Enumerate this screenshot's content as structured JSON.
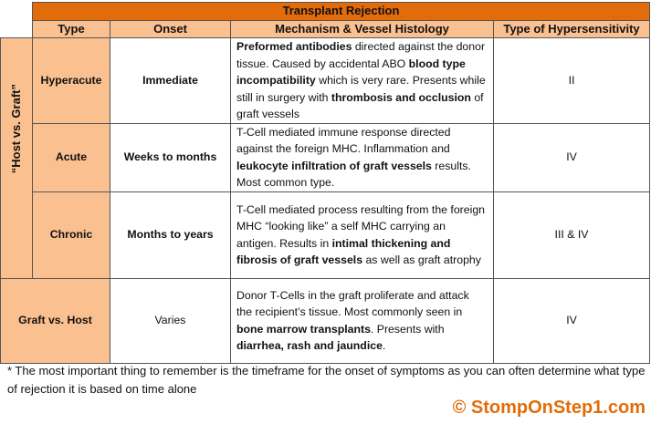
{
  "title": "Transplant Rejection",
  "headers": [
    "Type",
    "Onset",
    "Mechanism & Vessel Histology",
    "Type of Hypersensitivity"
  ],
  "side_label": "“Host vs. Graft”",
  "rows": [
    {
      "type": "Hyperacute",
      "onset": "Immediate",
      "hypersensitivity": "II",
      "mechanism": [
        {
          "t": "Preformed antibodies",
          "b": true
        },
        {
          "t": " directed against the donor tissue. Caused by accidental ABO ",
          "b": false
        },
        {
          "t": "blood type incompatibility",
          "b": true
        },
        {
          "t": " which is very rare. Presents while still in surgery with ",
          "b": false
        },
        {
          "t": "thrombosis and occlusion",
          "b": true
        },
        {
          "t": " of graft vessels",
          "b": false
        }
      ]
    },
    {
      "type": "Acute",
      "onset": "Weeks to months",
      "hypersensitivity": "IV",
      "mechanism": [
        {
          "t": "T-Cell mediated immune response directed against the foreign MHC. Inflammation and ",
          "b": false
        },
        {
          "t": "leukocyte infiltration of graft vessels",
          "b": true
        },
        {
          "t": " results. Most common type.",
          "b": false
        }
      ]
    },
    {
      "type": "Chronic",
      "onset": "Months to years",
      "hypersensitivity": "III & IV",
      "mechanism": [
        {
          "t": "T-Cell mediated process resulting from the foreign MHC “looking like” a self MHC carrying an antigen. Results in ",
          "b": false
        },
        {
          "t": "intimal thickening and fibrosis of graft vessels",
          "b": true
        },
        {
          "t": " as well as graft atrophy",
          "b": false
        }
      ]
    },
    {
      "type": "Graft vs. Host",
      "onset": "Varies",
      "hypersensitivity": "IV",
      "mechanism": [
        {
          "t": "Donor T-Cells in the graft proliferate and attack the recipient’s tissue. Most commonly seen in ",
          "b": false
        },
        {
          "t": "bone marrow transplants",
          "b": true
        },
        {
          "t": ".  Presents with ",
          "b": false
        },
        {
          "t": "diarrhea, rash and jaundice",
          "b": true
        },
        {
          "t": ".",
          "b": false
        }
      ]
    }
  ],
  "footnote": "* The most important thing to remember is the timeframe for the onset of symptoms as you can often determine what type of rejection it is based on time alone",
  "copyright": "© StompOnStep1.com",
  "colors": {
    "title_bg": "#E36C0A",
    "header_bg": "#FAC090",
    "brand": "#E36C0A"
  }
}
